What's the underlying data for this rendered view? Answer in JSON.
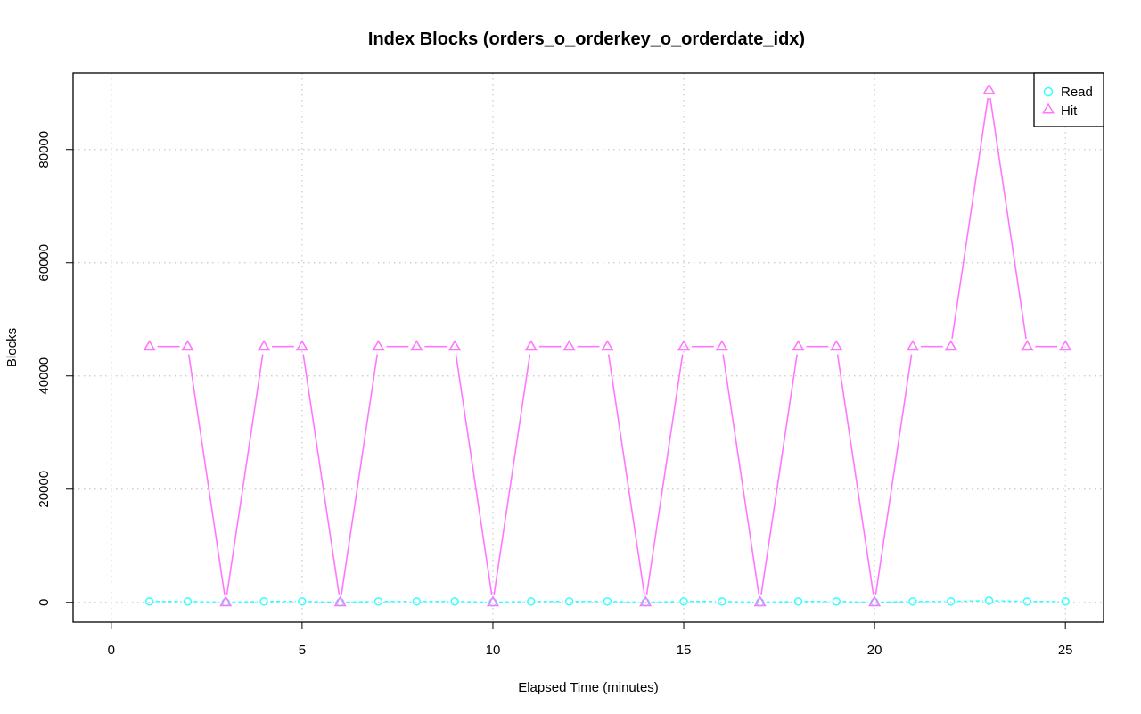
{
  "chart_data": {
    "type": "line",
    "title": "Index Blocks (orders_o_orderkey_o_orderdate_idx)",
    "xlabel": "Elapsed Time (minutes)",
    "ylabel": "Blocks",
    "xlim": [
      -1,
      26
    ],
    "ylim": [
      -3500,
      93500
    ],
    "xticks": [
      0,
      5,
      10,
      15,
      20,
      25
    ],
    "yticks": [
      0,
      20000,
      40000,
      60000,
      80000
    ],
    "xtick_labels": [
      "0",
      "5",
      "10",
      "15",
      "20",
      "25"
    ],
    "ytick_labels": [
      "0",
      "20000",
      "40000",
      "60000",
      "80000"
    ],
    "grid": true,
    "legend_position": "top-right",
    "x": [
      1,
      2,
      3,
      4,
      5,
      6,
      7,
      8,
      9,
      10,
      11,
      12,
      13,
      14,
      15,
      16,
      17,
      18,
      19,
      20,
      21,
      22,
      23,
      24,
      25
    ],
    "series": [
      {
        "name": "Read",
        "color": "#33ffff",
        "marker": "circle",
        "line_style": "dashed",
        "values": [
          150,
          150,
          0,
          150,
          150,
          0,
          150,
          150,
          150,
          0,
          150,
          150,
          150,
          0,
          150,
          150,
          0,
          150,
          150,
          0,
          150,
          150,
          300,
          150,
          150
        ]
      },
      {
        "name": "Hit",
        "color": "#ff77ff",
        "marker": "triangle",
        "line_style": "solid",
        "values": [
          45200,
          45200,
          0,
          45200,
          45200,
          0,
          45200,
          45200,
          45200,
          0,
          45200,
          45200,
          45200,
          0,
          45200,
          45200,
          0,
          45200,
          45200,
          0,
          45200,
          45200,
          90500,
          45200,
          45200
        ]
      }
    ]
  }
}
